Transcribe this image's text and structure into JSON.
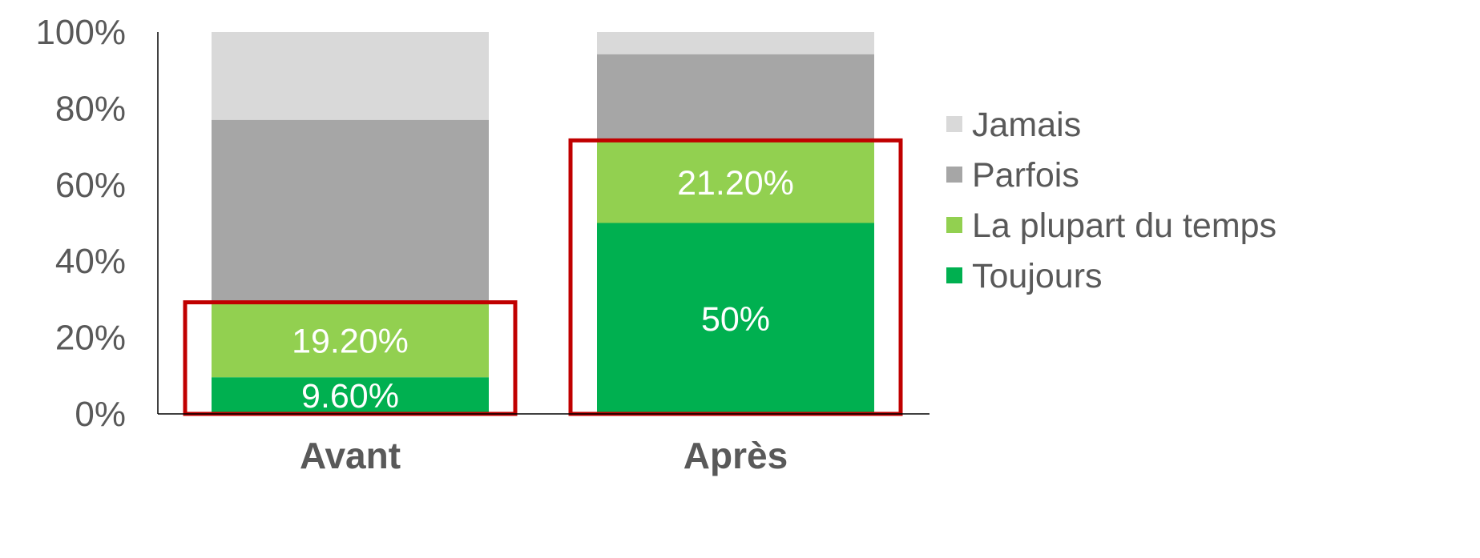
{
  "chart_data": {
    "type": "bar",
    "stacked": true,
    "title": "",
    "xlabel": "",
    "ylabel": "",
    "ylim": [
      0,
      100
    ],
    "yticks": [
      "0%",
      "20%",
      "40%",
      "60%",
      "80%",
      "100%"
    ],
    "categories": [
      "Avant",
      "Après"
    ],
    "series": [
      {
        "name": "Toujours",
        "values": [
          9.6,
          50
        ],
        "color": "#00B050",
        "labels": [
          "9.60%",
          "50%"
        ]
      },
      {
        "name": "La plupart du temps",
        "values": [
          19.2,
          21.2
        ],
        "color": "#92D050",
        "labels": [
          "19.20%",
          "21.20%"
        ]
      },
      {
        "name": "Parfois",
        "values": [
          48.2,
          23.0
        ],
        "color": "#A6A6A6",
        "labels": [
          "",
          ""
        ]
      },
      {
        "name": "Jamais",
        "values": [
          23.0,
          5.8
        ],
        "color": "#D9D9D9",
        "labels": [
          "",
          ""
        ]
      }
    ],
    "legend": {
      "position": "right",
      "order": [
        "Jamais",
        "Parfois",
        "La plupart du temps",
        "Toujours"
      ]
    },
    "grid": false,
    "highlight_color": "#C00000",
    "highlights": [
      {
        "category": "Avant",
        "series": [
          "Toujours",
          "La plupart du temps"
        ]
      },
      {
        "category": "Après",
        "series": [
          "Toujours",
          "La plupart du temps"
        ]
      }
    ]
  }
}
